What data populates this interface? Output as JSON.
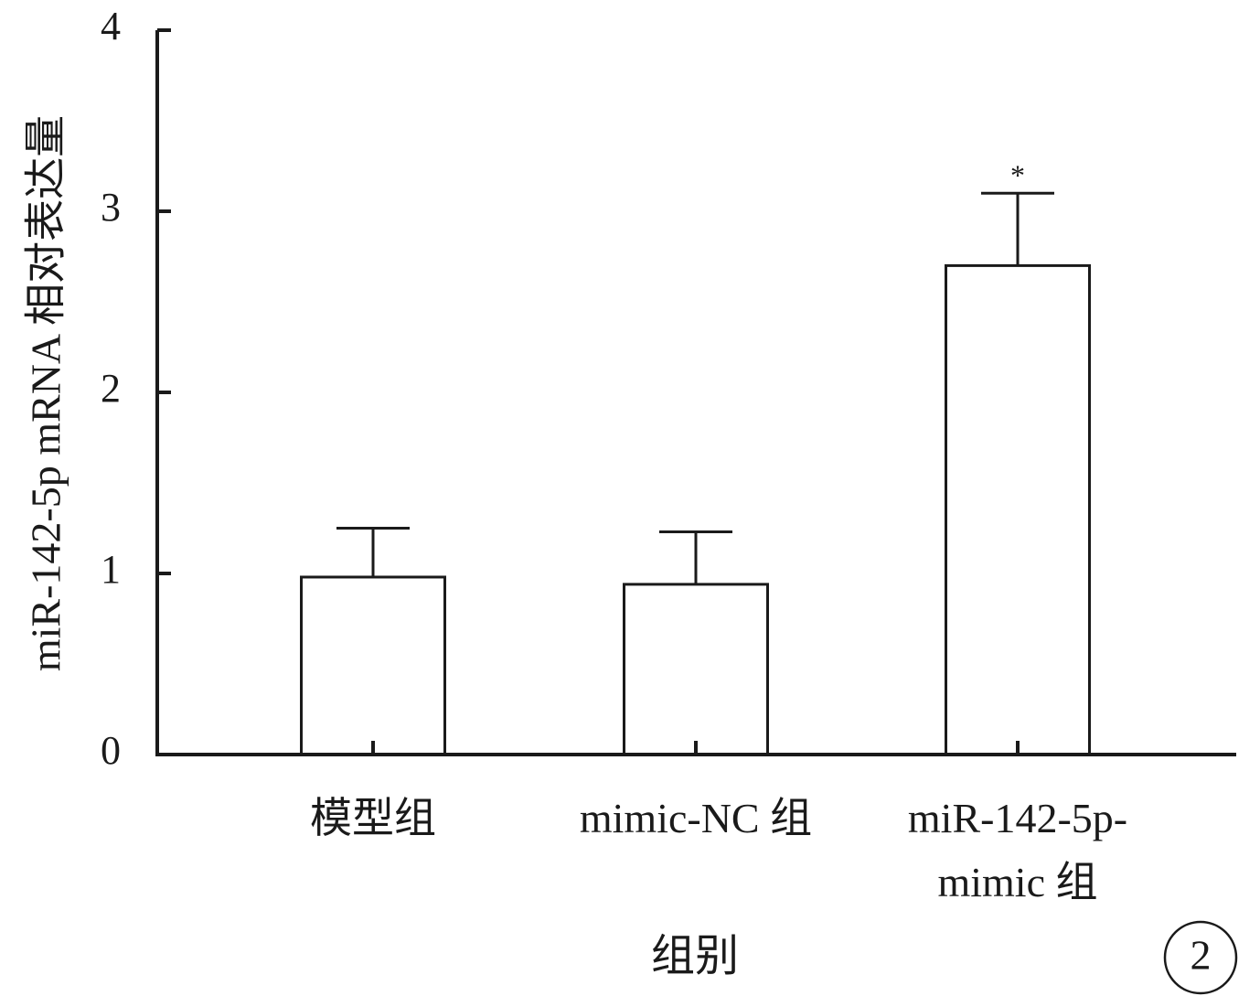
{
  "chart_data": {
    "type": "bar",
    "categories": [
      "模型组",
      "mimic-NC 组",
      "miR-142-5p-\nmimic 组"
    ],
    "values": [
      0.98,
      0.94,
      2.7
    ],
    "errors": [
      0.27,
      0.29,
      0.4
    ],
    "color": "#ffffff",
    "ylim": [
      0,
      4
    ],
    "yticks": [
      0,
      1,
      2,
      3,
      4
    ],
    "ylabel": "miR-142-5p mRNA 相对表达量",
    "xlabel": "组别",
    "annotations": [
      {
        "text": "*",
        "category": 2
      }
    ],
    "panel_label": "2"
  }
}
